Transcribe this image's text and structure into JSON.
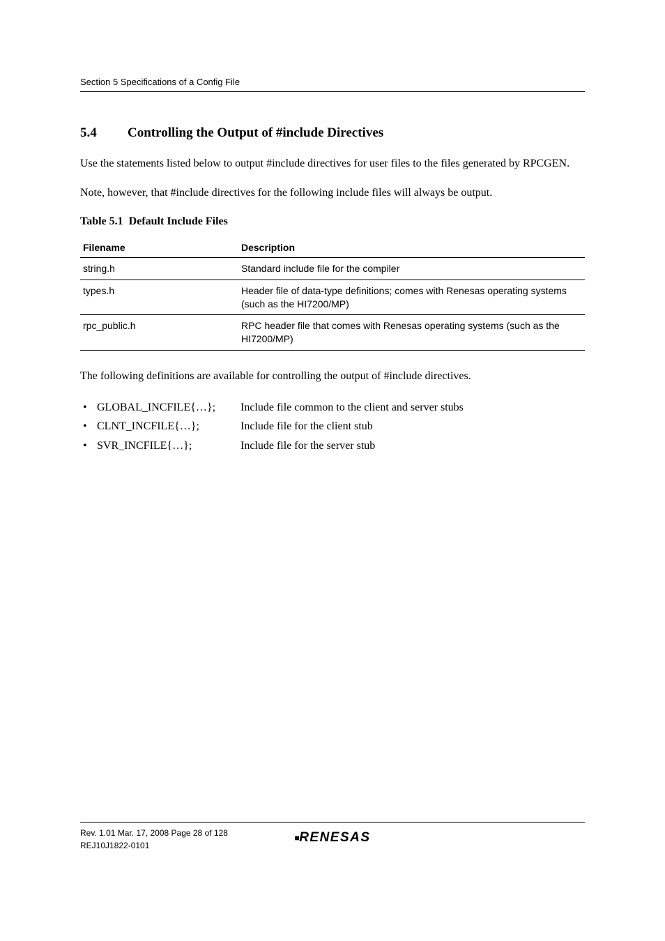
{
  "header": {
    "section_ref": "Section 5   Specifications of a Config File"
  },
  "title": {
    "number": "5.4",
    "text": "Controlling the Output of #include Directives"
  },
  "paragraphs": {
    "p1": "Use the statements listed below to output #include directives for user files to the files generated by RPCGEN.",
    "p2": "Note, however, that #include directives for the following include files will always be output.",
    "p3": "The following definitions are available for controlling the output of #include directives."
  },
  "table": {
    "number": "Table 5.1",
    "title": "Default Include Files",
    "headers": {
      "filename": "Filename",
      "description": "Description"
    },
    "rows": [
      {
        "filename": "string.h",
        "description": "Standard include file for the compiler"
      },
      {
        "filename": "types.h",
        "description": "Header file of data-type definitions; comes with Renesas operating systems (such as the HI7200/MP)"
      },
      {
        "filename": "rpc_public.h",
        "description": "RPC header file that comes with Renesas operating systems (such as the HI7200/MP)"
      }
    ]
  },
  "definitions": [
    {
      "term": "GLOBAL_INCFILE{…};",
      "desc": "Include file common to the client and server stubs"
    },
    {
      "term": "CLNT_INCFILE{…};",
      "desc": "Include file for the client stub"
    },
    {
      "term": "SVR_INCFILE{…};",
      "desc": "Include file for the server stub"
    }
  ],
  "footer": {
    "rev_line": "Rev. 1.01  Mar. 17, 2008  Page 28 of 128",
    "doc_id": "REJ10J1822-0101",
    "logo": "RENESAS"
  }
}
